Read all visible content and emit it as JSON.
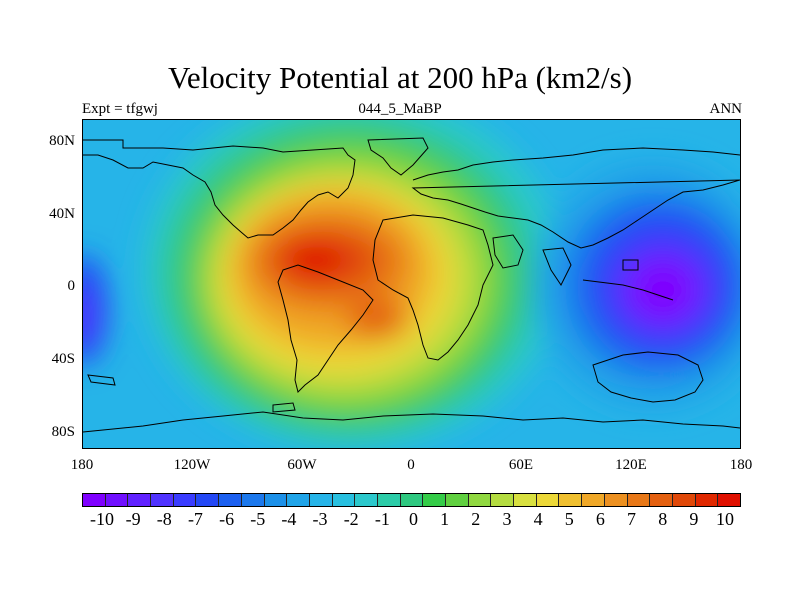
{
  "title": "Velocity Potential at 200 hPa (km2/s)",
  "subtitle_left": "Expt = tfgwj",
  "subtitle_center": "044_5_MaBP",
  "subtitle_right": "ANN",
  "lat_labels": [
    "80N",
    "40N",
    "0",
    "40S",
    "80S"
  ],
  "lon_labels": [
    "180",
    "120W",
    "60W",
    "0",
    "60E",
    "120E",
    "180"
  ],
  "colorbar": {
    "labels": [
      "-10",
      "-9",
      "-8",
      "-7",
      "-6",
      "-5",
      "-4",
      "-3",
      "-2",
      "-1",
      "0",
      "1",
      "2",
      "3",
      "4",
      "5",
      "6",
      "7",
      "8",
      "9",
      "10"
    ],
    "colors": [
      "#7f00ff",
      "#7010ff",
      "#6022ff",
      "#5033ff",
      "#3a3cff",
      "#2448f5",
      "#1c60f0",
      "#1c78ec",
      "#1c90e8",
      "#20a4e8",
      "#26b4e8",
      "#28c0e0",
      "#2cc8cc",
      "#2ccca8",
      "#2ec880",
      "#34cc48",
      "#60d040",
      "#90d840",
      "#b4dc40",
      "#d8e040",
      "#ecd838",
      "#f0c030",
      "#f0a828",
      "#ec9020",
      "#e87818",
      "#e46010",
      "#e04808",
      "#e02800",
      "#e01000"
    ]
  },
  "chart_data": {
    "type": "filled-contour-map",
    "variable": "Velocity Potential at 200 hPa",
    "units": "km2/s",
    "season": "ANN",
    "experiment": "tfgwj",
    "case": "044_5_MaBP",
    "x_range": [
      -180,
      180
    ],
    "y_range": [
      -90,
      90
    ],
    "contour_levels": [
      -10,
      -9,
      -8,
      -7,
      -6,
      -5,
      -4,
      -3,
      -2,
      -1,
      0,
      1,
      2,
      3,
      4,
      5,
      6,
      7,
      8,
      9,
      10
    ],
    "features": [
      {
        "name": "maximum",
        "lon": -48,
        "lat": 12,
        "value": 10
      },
      {
        "name": "secondary maximum",
        "lon": -15,
        "lat": -20,
        "value": 8
      },
      {
        "name": "minimum",
        "lon": 135,
        "lat": 0,
        "value": -10
      }
    ]
  }
}
